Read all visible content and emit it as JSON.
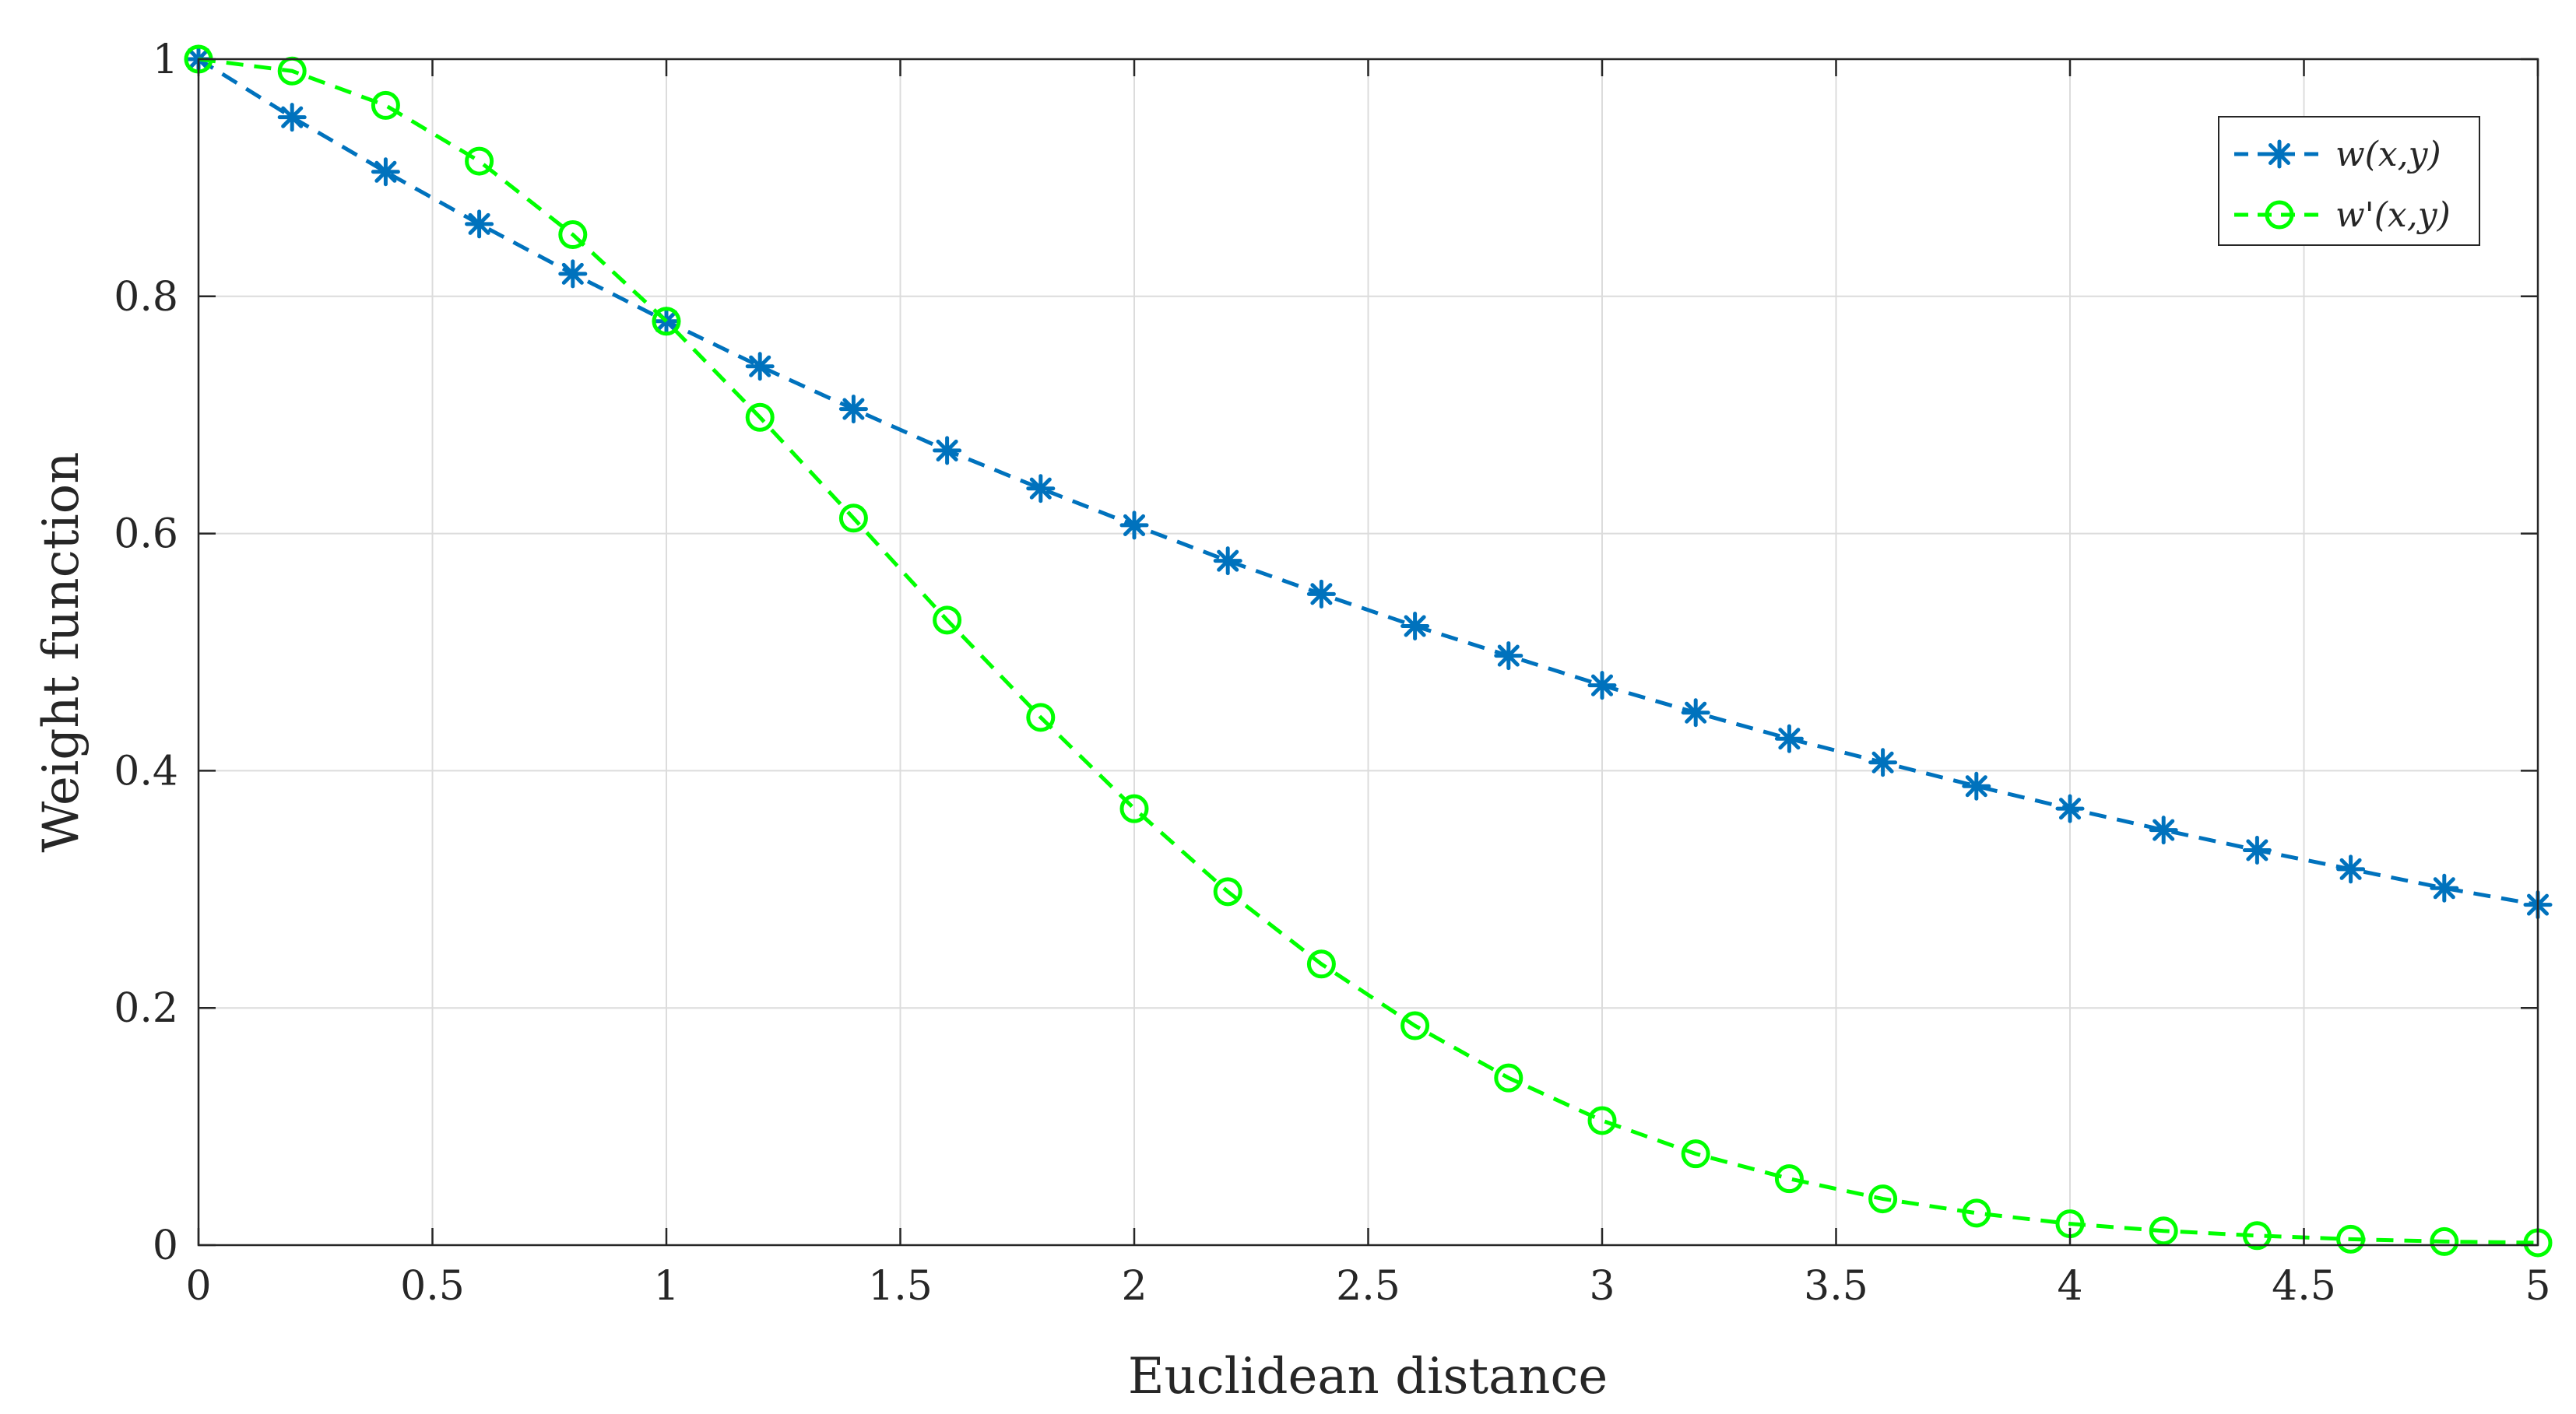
{
  "chart_data": {
    "type": "line",
    "xlabel": "Euclidean distance",
    "ylabel": "Weight function",
    "xlim": [
      0,
      5
    ],
    "ylim": [
      0,
      1
    ],
    "xticks": [
      0,
      0.5,
      1,
      1.5,
      2,
      2.5,
      3,
      3.5,
      4,
      4.5,
      5
    ],
    "xtick_labels": [
      "0",
      "0.5",
      "1",
      "1.5",
      "2",
      "2.5",
      "3",
      "3.5",
      "4",
      "4.5",
      "5"
    ],
    "yticks": [
      0,
      0.2,
      0.4,
      0.6,
      0.8,
      1
    ],
    "ytick_labels": [
      "0",
      "0.2",
      "0.4",
      "0.6",
      "0.8",
      "1"
    ],
    "grid": true,
    "legend_position": "top-right",
    "x": [
      0,
      0.2,
      0.4,
      0.6,
      0.8,
      1.0,
      1.2,
      1.4,
      1.6,
      1.8,
      2.0,
      2.2,
      2.4,
      2.6,
      2.8,
      3.0,
      3.2,
      3.4,
      3.6,
      3.8,
      4.0,
      4.2,
      4.4,
      4.6,
      4.8,
      5.0
    ],
    "series": [
      {
        "name": "w(x,y)",
        "color": "#0072BD",
        "marker": "asterisk",
        "line_style": "dashed",
        "values": [
          1.0,
          0.951,
          0.905,
          0.861,
          0.819,
          0.779,
          0.741,
          0.705,
          0.67,
          0.638,
          0.607,
          0.577,
          0.549,
          0.522,
          0.497,
          0.472,
          0.449,
          0.427,
          0.407,
          0.387,
          0.368,
          0.35,
          0.333,
          0.317,
          0.301,
          0.287
        ]
      },
      {
        "name": "w'(x,y)",
        "color": "#00FF00",
        "marker": "circle",
        "line_style": "dashed",
        "values": [
          1.0,
          0.99,
          0.961,
          0.914,
          0.852,
          0.779,
          0.698,
          0.613,
          0.527,
          0.445,
          0.368,
          0.298,
          0.237,
          0.185,
          0.141,
          0.105,
          0.077,
          0.056,
          0.039,
          0.027,
          0.018,
          0.012,
          0.008,
          0.005,
          0.003,
          0.002
        ]
      }
    ]
  }
}
